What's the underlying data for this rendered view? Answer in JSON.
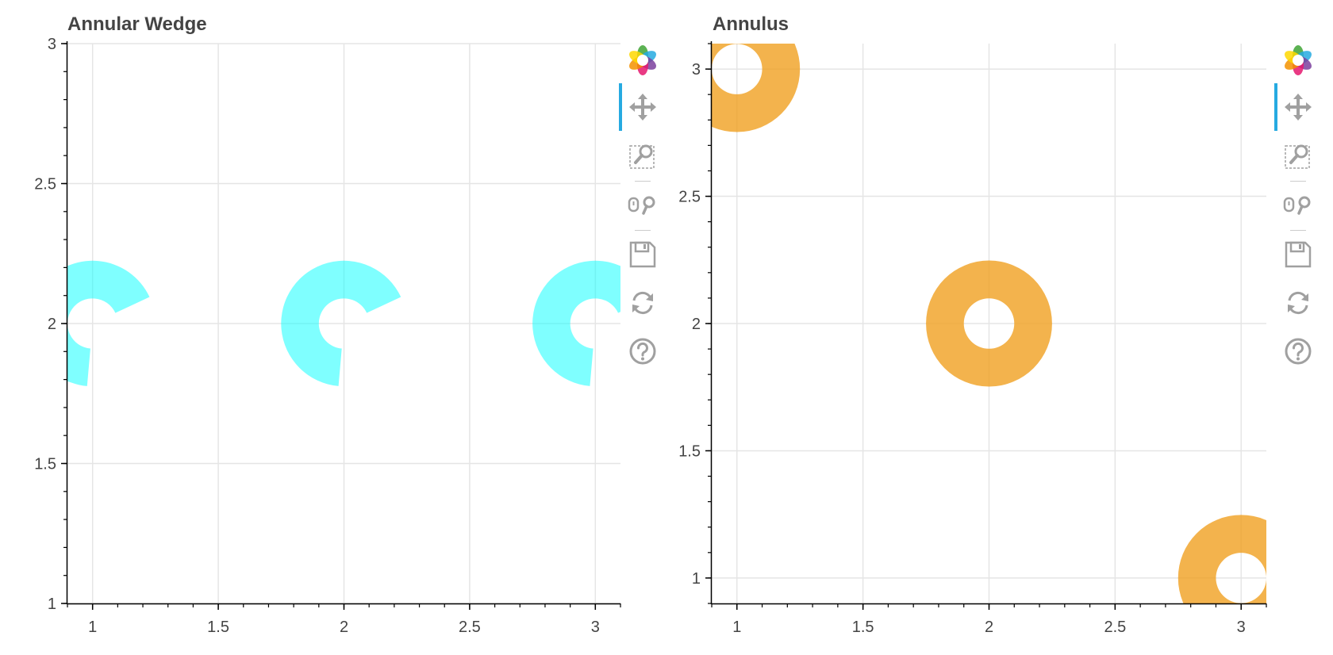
{
  "chart_data": [
    {
      "type": "scatter",
      "title": "Annular Wedge",
      "glyph": "annular_wedge",
      "color": "#00FFFF",
      "alpha": 0.5,
      "x": [
        1,
        2,
        3
      ],
      "y": [
        2,
        2,
        2
      ],
      "inner_radius": 0.1,
      "outer_radius": 0.25,
      "start_angle_deg": 25,
      "end_angle_deg": 265,
      "xlim": [
        0.9,
        3.1
      ],
      "ylim": [
        1,
        3
      ],
      "xticks": [
        1,
        1.5,
        2,
        2.5,
        3
      ],
      "xtick_labels": [
        "1",
        "1.5",
        "2",
        "2.5",
        "3"
      ],
      "yticks": [
        1,
        1.5,
        2,
        2.5,
        3
      ],
      "ytick_labels": [
        "1",
        "1.5",
        "2",
        "2.5",
        "3"
      ],
      "xlabel": "",
      "ylabel": "",
      "grid": true
    },
    {
      "type": "scatter",
      "title": "Annulus",
      "glyph": "annulus",
      "color": "#F0A020",
      "alpha": 0.8,
      "x": [
        1,
        2,
        3
      ],
      "y": [
        3,
        2,
        1
      ],
      "inner_radius": 0.1,
      "outer_radius": 0.25,
      "xlim": [
        0.9,
        3.1
      ],
      "ylim": [
        0.9,
        3.1
      ],
      "xticks": [
        1,
        1.5,
        2,
        2.5,
        3
      ],
      "xtick_labels": [
        "1",
        "1.5",
        "2",
        "2.5",
        "3"
      ],
      "yticks": [
        1,
        1.5,
        2,
        2.5,
        3
      ],
      "ytick_labels": [
        "1",
        "1.5",
        "2",
        "2.5",
        "3"
      ],
      "xlabel": "",
      "ylabel": "",
      "grid": true
    }
  ],
  "toolbar": {
    "logo_icon": "bokeh-logo-icon",
    "active_tool": "pan",
    "tools": [
      "pan-tool-icon",
      "box-zoom-tool-icon",
      "wheel-zoom-tool-icon",
      "save-tool-icon",
      "reset-tool-icon",
      "help-tool-icon"
    ],
    "icon_color": "#a0a0a0",
    "active_color": "#26aae1"
  }
}
